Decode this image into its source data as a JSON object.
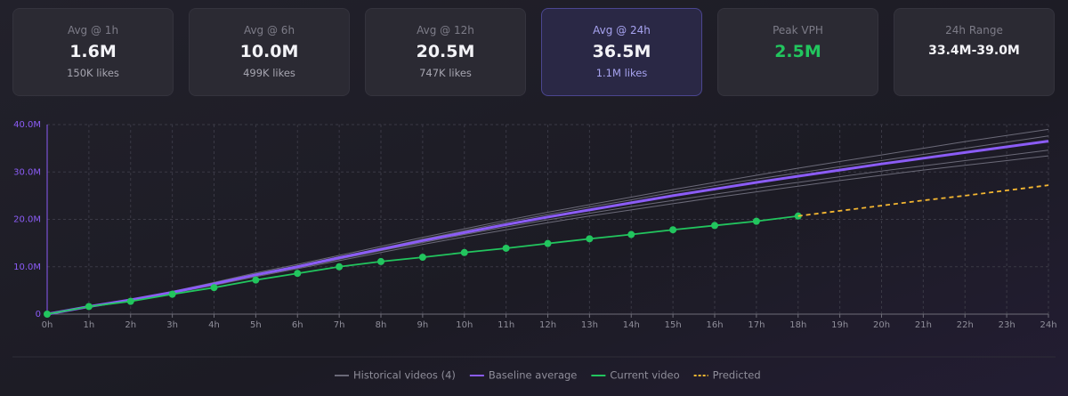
{
  "cards": [
    {
      "label": "Avg @ 1h",
      "value": "1.6M",
      "sub": "150K likes"
    },
    {
      "label": "Avg @ 6h",
      "value": "10.0M",
      "sub": "499K likes"
    },
    {
      "label": "Avg @ 12h",
      "value": "20.5M",
      "sub": "747K likes"
    },
    {
      "label": "Avg @ 24h",
      "value": "36.5M",
      "sub": "1.1M likes"
    },
    {
      "label": "Peak VPH",
      "value": "2.5M"
    },
    {
      "label": "24h Range",
      "value": "33.4M-39.0M"
    }
  ],
  "chart_data": {
    "type": "line",
    "categories": [
      "0h",
      "1h",
      "2h",
      "3h",
      "4h",
      "5h",
      "6h",
      "7h",
      "8h",
      "9h",
      "10h",
      "11h",
      "12h",
      "13h",
      "14h",
      "15h",
      "16h",
      "17h",
      "18h",
      "19h",
      "20h",
      "21h",
      "22h",
      "23h",
      "24h"
    ],
    "ylim": [
      0,
      40000000
    ],
    "yticks": [
      0,
      {
        "value": 10000000,
        "label": "10.0M"
      },
      {
        "value": 20000000,
        "label": "20.0M"
      },
      {
        "value": 30000000,
        "label": "30.0M"
      },
      {
        "value": 40000000,
        "label": "40.0M"
      }
    ],
    "grid": true,
    "series": [
      {
        "name": "Historical videos (4)",
        "color": "#6b6a78",
        "values": [
          [
            0,
            1700000,
            3100000,
            4800000,
            6700000,
            8700000,
            10500000,
            12400000,
            14300000,
            16200000,
            18000000,
            19800000,
            21500000,
            23100000,
            24700000,
            26300000,
            27800000,
            29300000,
            30800000,
            32200000,
            33600000,
            35000000,
            36400000,
            37700000,
            39000000
          ],
          [
            0,
            1600000,
            3000000,
            4700000,
            6500000,
            8400000,
            10200000,
            12100000,
            13900000,
            15800000,
            17600000,
            19400000,
            21000000,
            22600000,
            24100000,
            25700000,
            27100000,
            28500000,
            29800000,
            31100000,
            32400000,
            33700000,
            35000000,
            36300000,
            37600000
          ],
          [
            0,
            1500000,
            2900000,
            4500000,
            6300000,
            8100000,
            9800000,
            11600000,
            13400000,
            15100000,
            16800000,
            18400000,
            19900000,
            21300000,
            22700000,
            24000000,
            25300000,
            26600000,
            27800000,
            29000000,
            30200000,
            31300000,
            32400000,
            33500000,
            34600000
          ],
          [
            0,
            1500000,
            2800000,
            4400000,
            6100000,
            7900000,
            9600000,
            11300000,
            13000000,
            14700000,
            16300000,
            17800000,
            19300000,
            20700000,
            22000000,
            23300000,
            24600000,
            25800000,
            27000000,
            28200000,
            29300000,
            30400000,
            31400000,
            32400000,
            33400000
          ]
        ]
      },
      {
        "name": "Baseline average",
        "color": "#8b5cf6",
        "values": [
          0,
          1600000,
          3000000,
          4600000,
          6400000,
          8300000,
          10000000,
          11900000,
          13700000,
          15500000,
          17200000,
          18900000,
          20500000,
          22000000,
          23500000,
          25000000,
          26400000,
          27800000,
          29100000,
          30400000,
          31700000,
          32900000,
          34100000,
          35300000,
          36500000
        ]
      },
      {
        "name": "Current video",
        "color": "#22c55e",
        "values": [
          0,
          1600000,
          2700000,
          4200000,
          5600000,
          7200000,
          8600000,
          10000000,
          11100000,
          12000000,
          13000000,
          13900000,
          14900000,
          15900000,
          16800000,
          17800000,
          18700000,
          19600000,
          20700000,
          null,
          null,
          null,
          null,
          null,
          null
        ]
      },
      {
        "name": "Predicted",
        "color": "#f5b731",
        "dashed": true,
        "values": [
          null,
          null,
          null,
          null,
          null,
          null,
          null,
          null,
          null,
          null,
          null,
          null,
          null,
          null,
          null,
          null,
          null,
          null,
          20700000,
          21800000,
          22900000,
          24000000,
          25000000,
          26100000,
          27200000
        ]
      }
    ]
  }
}
